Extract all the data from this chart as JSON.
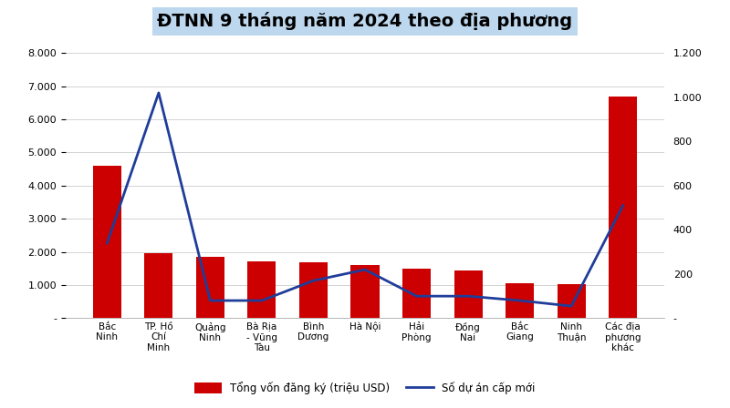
{
  "title": "ĐTNN 9 tháng năm 2024 theo địa phương",
  "categories": [
    "Bắc\nNinh",
    "TP. Hồ\nChí\nMinh",
    "Quảng\nNinh",
    "Bà Rịa\n- Vũng\nTàu",
    "Bình\nDương",
    "Hà Nội",
    "Hải\nPhòng",
    "Đồng\nNai",
    "Bắc\nGiang",
    "Ninh\nThuận",
    "Các địa\nphương\nkhác"
  ],
  "bar_values": [
    4600,
    1950,
    1850,
    1720,
    1680,
    1600,
    1500,
    1430,
    1050,
    1020,
    6700
  ],
  "line_values": [
    340,
    1020,
    80,
    80,
    170,
    220,
    100,
    100,
    80,
    55,
    510
  ],
  "bar_color": "#CC0000",
  "line_color": "#1F3D99",
  "left_ylim": [
    0,
    8000
  ],
  "right_ylim": [
    0,
    1200
  ],
  "left_yticks": [
    0,
    1000,
    2000,
    3000,
    4000,
    5000,
    6000,
    7000,
    8000
  ],
  "right_yticks": [
    0,
    200,
    400,
    600,
    800,
    1000,
    1200
  ],
  "legend_bar": "Tổng vốn đăng ký (triệu USD)",
  "legend_line": "Số dự án cấp mới",
  "title_fontsize": 14,
  "title_bg_color": "#BDD7EE",
  "background_color": "#FFFFFF"
}
